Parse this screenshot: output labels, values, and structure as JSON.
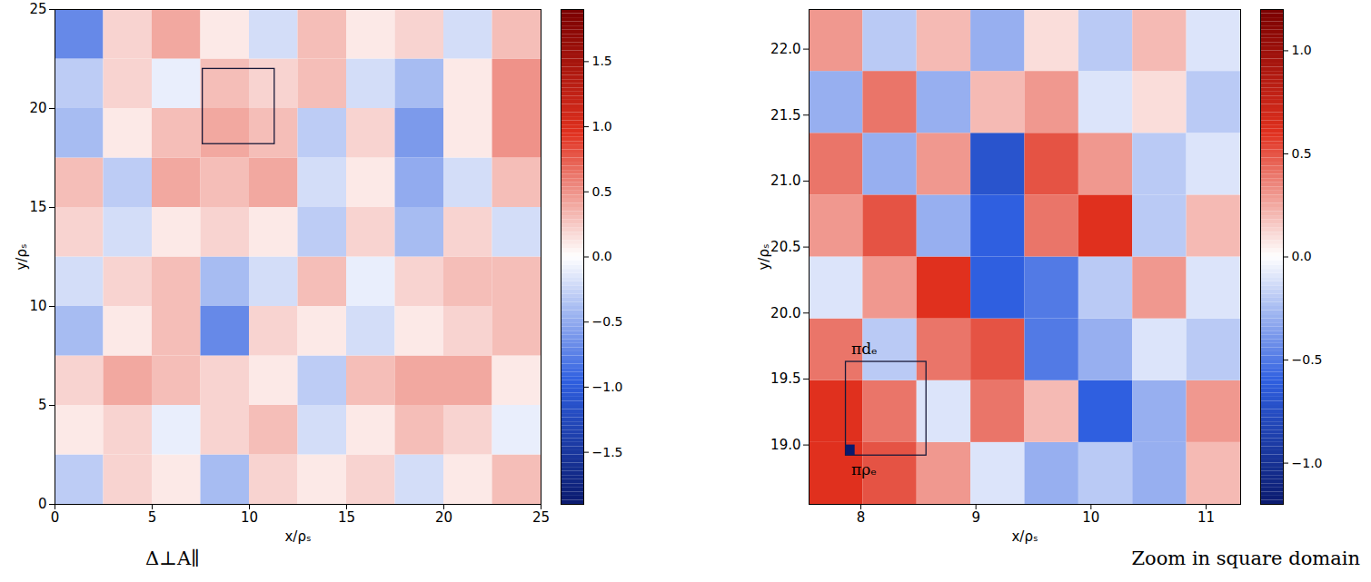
{
  "chart_data": [
    {
      "type": "heatmap",
      "caption": "Δ⊥A∥",
      "xlabel": "x/ρₛ",
      "ylabel": "y/ρₛ",
      "xlim": [
        0,
        25
      ],
      "ylim": [
        0,
        25
      ],
      "xticks": [
        0,
        5,
        10,
        15,
        20,
        25
      ],
      "yticks": [
        0,
        5,
        10,
        15,
        20,
        25
      ],
      "cells": {
        "x_edges": [
          0,
          2.5,
          5,
          7.5,
          10,
          12.5,
          15,
          17.5,
          20,
          22.5,
          25
        ],
        "y_edges": [
          0,
          2.5,
          5,
          7.5,
          10,
          12.5,
          15,
          17.5,
          20,
          22.5,
          25
        ],
        "values": [
          [
            -0.3,
            0.2,
            0.1,
            -0.4,
            0.2,
            0.1,
            0.2,
            -0.2,
            0.1,
            0.3
          ],
          [
            0.1,
            0.2,
            -0.1,
            0.2,
            0.3,
            -0.2,
            0.1,
            0.3,
            0.2,
            -0.1
          ],
          [
            0.2,
            0.4,
            0.3,
            0.2,
            0.1,
            -0.3,
            0.3,
            0.4,
            0.4,
            0.1
          ],
          [
            -0.4,
            0.1,
            0.3,
            -0.7,
            0.2,
            0.1,
            -0.2,
            0.1,
            0.2,
            0.3
          ],
          [
            -0.2,
            0.2,
            0.3,
            -0.4,
            -0.2,
            0.3,
            -0.1,
            0.2,
            0.3,
            0.3
          ],
          [
            0.2,
            -0.2,
            0.1,
            0.2,
            0.1,
            -0.3,
            0.2,
            -0.4,
            0.2,
            -0.2
          ],
          [
            0.3,
            -0.3,
            0.4,
            0.3,
            0.4,
            -0.2,
            0.1,
            -0.5,
            -0.2,
            0.3
          ],
          [
            -0.4,
            0.1,
            0.3,
            0.4,
            0.3,
            -0.3,
            0.2,
            -0.6,
            0.1,
            0.5
          ],
          [
            -0.3,
            0.2,
            -0.1,
            0.3,
            0.2,
            0.3,
            -0.2,
            -0.4,
            0.1,
            0.5
          ],
          [
            -0.7,
            0.2,
            0.4,
            0.1,
            -0.2,
            0.3,
            0.1,
            0.2,
            -0.2,
            0.3
          ]
        ]
      },
      "colorbar": {
        "range": [
          -1.9,
          1.9
        ],
        "ticks": [
          {
            "value": -1.5,
            "label": "−1.5"
          },
          {
            "value": -1,
            "label": "−1.0"
          },
          {
            "value": -0.5,
            "label": "−0.5"
          },
          {
            "value": 0,
            "label": "0.0"
          },
          0.5,
          {
            "value": 1,
            "label": "1.0"
          },
          1.5
        ]
      },
      "annotations": [
        {
          "x": [
            7.6,
            11.3
          ],
          "y": [
            18.2,
            22.0
          ]
        }
      ]
    },
    {
      "type": "heatmap",
      "caption": "Zoom in square domain",
      "xlabel": "x/ρₛ",
      "ylabel": "y/ρₛ",
      "xlim": [
        7.55,
        11.3
      ],
      "ylim": [
        18.55,
        22.3
      ],
      "xticks": [
        8,
        9,
        10,
        11
      ],
      "yticks": [
        {
          "value": 19,
          "label": "19.0"
        },
        19.5,
        {
          "value": 20,
          "label": "20.0"
        },
        20.5,
        {
          "value": 21,
          "label": "21.0"
        },
        21.5,
        {
          "value": 22,
          "label": "22.0"
        }
      ],
      "cells": {
        "x_edges": [
          7.55,
          8.01875,
          8.4875,
          8.95625,
          9.425,
          9.89375,
          10.3625,
          10.83125,
          11.3
        ],
        "y_edges": [
          18.55,
          19.01875,
          19.4875,
          19.95625,
          20.425,
          20.89375,
          21.3625,
          21.83125,
          22.3
        ],
        "values": [
          [
            0.6,
            0.5,
            0.3,
            -0.1,
            -0.3,
            -0.2,
            -0.3,
            0.2
          ],
          [
            0.6,
            0.4,
            -0.1,
            0.4,
            0.2,
            -0.6,
            -0.3,
            0.3
          ],
          [
            0.4,
            -0.2,
            0.4,
            0.5,
            -0.5,
            -0.3,
            -0.1,
            -0.2
          ],
          [
            -0.1,
            0.3,
            0.6,
            -0.6,
            -0.5,
            -0.2,
            0.3,
            -0.1
          ],
          [
            0.3,
            0.5,
            -0.3,
            -0.6,
            0.4,
            0.6,
            -0.2,
            0.2
          ],
          [
            0.4,
            -0.3,
            0.3,
            -0.7,
            0.5,
            0.3,
            -0.2,
            -0.1
          ],
          [
            -0.3,
            0.4,
            -0.3,
            0.2,
            0.3,
            -0.1,
            0.1,
            -0.2
          ],
          [
            0.3,
            -0.2,
            0.2,
            -0.3,
            0.1,
            -0.2,
            0.2,
            -0.1
          ]
        ]
      },
      "colorbar": {
        "range": [
          -1.2,
          1.2
        ],
        "ticks": [
          {
            "value": -1,
            "label": "−1.0"
          },
          {
            "value": -0.5,
            "label": "−0.5"
          },
          {
            "value": 0,
            "label": "0.0"
          },
          0.5,
          {
            "value": 1,
            "label": "1.0"
          }
        ]
      },
      "annotations": [
        {
          "x": [
            7.87,
            8.57
          ],
          "y": [
            18.92,
            19.63
          ],
          "label": "πdₑ"
        },
        {
          "x": [
            7.87,
            7.95
          ],
          "y": [
            18.92,
            19.0
          ],
          "label": "πρₑ",
          "filled": true
        }
      ]
    }
  ]
}
